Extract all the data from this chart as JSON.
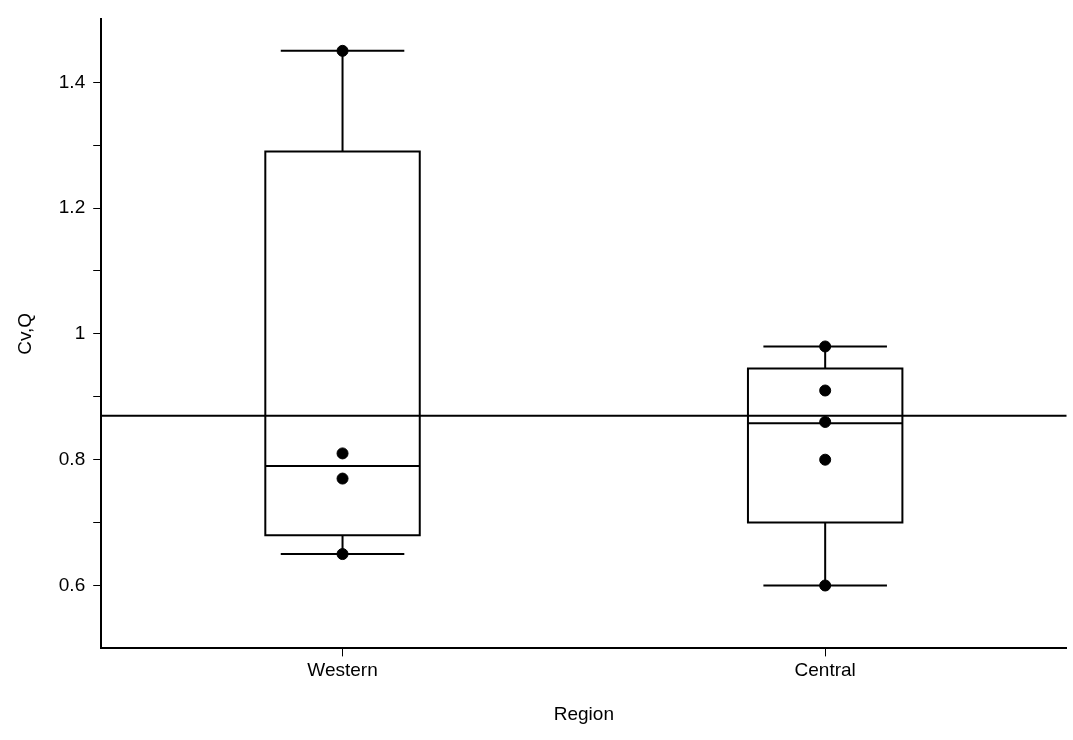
{
  "chart_data": {
    "type": "box",
    "xlabel": "Region",
    "ylabel": "Cv,Q",
    "categories": [
      "Western",
      "Central"
    ],
    "boxes": [
      {
        "low": 0.65,
        "q1": 0.68,
        "median": 0.79,
        "q3": 1.29,
        "high": 1.45
      },
      {
        "low": 0.6,
        "q1": 0.7,
        "median": 0.858,
        "q3": 0.945,
        "high": 0.98
      }
    ],
    "color": "#000000",
    "series": [
      {
        "type": "scatter",
        "color": "#000000",
        "x": [
          "Western",
          "Western",
          "Western",
          "Western",
          "Central",
          "Central",
          "Central",
          "Central",
          "Central"
        ],
        "values": [
          1.45,
          0.81,
          0.77,
          0.65,
          0.98,
          0.91,
          0.86,
          0.8,
          0.6
        ]
      }
    ],
    "ylim": [
      0.5,
      1.5
    ],
    "yticks": [
      0.6,
      {
        "value": 0.7,
        "label": null
      },
      0.8,
      {
        "value": 0.9,
        "label": null
      },
      {
        "value": 1,
        "label": "1"
      },
      {
        "value": 1.1,
        "label": null
      },
      1.2,
      {
        "value": 1.3,
        "label": null
      },
      1.4
    ],
    "ref_lines": [
      {
        "axis": "y",
        "value": 0.87,
        "color": "#000000"
      }
    ],
    "grid": false,
    "legend": false,
    "marker": "circle"
  }
}
